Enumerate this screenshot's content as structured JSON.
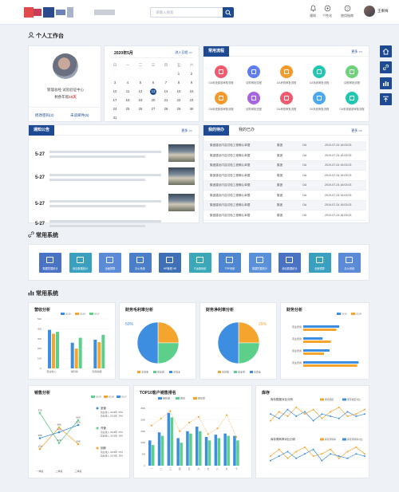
{
  "header": {
    "search_placeholder": "请输入搜索",
    "tools": [
      {
        "label": "通知",
        "icon": "bell-icon"
      },
      {
        "label": "个性化",
        "icon": "palette-icon"
      },
      {
        "label": "使用指南",
        "icon": "help-icon"
      }
    ],
    "user_name": "王東梅"
  },
  "sections": {
    "workbench": "个人工作台",
    "systems": "常用系统",
    "stats": "常用系统"
  },
  "profile": {
    "line1": "管理总经  试验验证中心",
    "line2_prefix": "剩余年假",
    "line2_value": "10天",
    "link1": "修改密码(2)",
    "link2": "未读邮件(5)"
  },
  "calendar": {
    "title": "2020年5月",
    "link": "进入日程 >>",
    "weekdays": [
      "日",
      "一",
      "二",
      "三",
      "四",
      "五",
      "六"
    ],
    "rows": [
      [
        "",
        "",
        "",
        "",
        "",
        "1",
        "2"
      ],
      [
        "3",
        "4",
        "5",
        "6",
        "7",
        "8",
        "9"
      ],
      [
        "10",
        "11",
        "12",
        "13",
        "14",
        "15",
        "16"
      ],
      [
        "17",
        "18",
        "19",
        "20",
        "21",
        "22",
        "23"
      ],
      [
        "24",
        "25",
        "26",
        "27",
        "28",
        "29",
        "30"
      ],
      [
        "31",
        "",
        "",
        "",
        "",
        "",
        ""
      ]
    ],
    "today": "13"
  },
  "flow": {
    "tab": "常用流程",
    "more": "更多 >>",
    "items": [
      {
        "label": "OA系统部部审核流程",
        "color": "#ef5a6e"
      },
      {
        "label": "请购审批流程",
        "color": "#5d7df0"
      },
      {
        "label": "OA考勤审批流程",
        "color": "#f39a2d"
      },
      {
        "label": "OA系统审批流程",
        "color": "#21c7b0"
      },
      {
        "label": "请假审批流程",
        "color": "#6ed27a"
      },
      {
        "label": "OA系统部部审核流程",
        "color": "#f39a2d"
      },
      {
        "label": "请购审批流程",
        "color": "#a765e0"
      },
      {
        "label": "OA考勤审批流程",
        "color": "#ef5a6e"
      },
      {
        "label": "OA系统审批流程",
        "color": "#4aa9f0"
      },
      {
        "label": "OA系统部部审核流程",
        "color": "#21c7b0"
      }
    ]
  },
  "notice": {
    "tab": "通知公告",
    "more": "更多 >>",
    "dates": [
      "5-27",
      "5-27",
      "5-27",
      "5-27"
    ]
  },
  "todo": {
    "tab1": "我的待办",
    "tab2": "我的已办",
    "more": "更多 >>",
    "rows": [
      [
        "集团建设内容试验工程确认单据",
        "集团",
        "OA",
        "2019-07-24 16:03:03"
      ],
      [
        "集团建设内容试验工程确认单据",
        "集团",
        "OA",
        "2019-07-24 16:03:03"
      ],
      [
        "集团建设内容试验工程确认单据",
        "集团",
        "OA",
        "2019-07-24 16:03:03"
      ],
      [
        "集团建设内容试验工程确认单据",
        "集团",
        "OA",
        "2019-07-24 16:03:03"
      ],
      [
        "集团建设内容试验工程确认单据",
        "集团",
        "OA",
        "2019-07-24 16:03:03"
      ],
      [
        "集团建设内容试验工程确认单据",
        "集团",
        "OA",
        "2019-07-24 16:03:03"
      ],
      [
        "集团建设内容试验工程确认单据",
        "集团",
        "OA",
        "2019-07-24 16:03:03"
      ],
      [
        "集团建设内容试验工程确认单据",
        "集团",
        "OA",
        "2019-07-24 16:03:03"
      ]
    ]
  },
  "systems": [
    {
      "label": "数据挖掘统计",
      "color": "#4a72c4"
    },
    {
      "label": "综合数据统计",
      "color": "#3aa0c0"
    },
    {
      "label": "全面预算",
      "color": "#5b8bd6"
    },
    {
      "label": "办公系统",
      "color": "#4a7ec8"
    },
    {
      "label": "HR管理 HR",
      "color": "#3f6fb5"
    },
    {
      "label": "IT运维系统",
      "color": "#3aa8b8"
    },
    {
      "label": "TRP系统",
      "color": "#4f86d0"
    },
    {
      "label": "数据挖掘统计",
      "color": "#5a90d8"
    },
    {
      "label": "综合数据统计",
      "color": "#4a72c4"
    },
    {
      "label": "全面预算",
      "color": "#3aa0c0"
    },
    {
      "label": "办公系统",
      "color": "#5b8bd6"
    }
  ],
  "charts": {
    "gross": {
      "title": "营收分析",
      "chart_data": {
        "type": "bar",
        "categories": [
          "营业收入",
          "净利润",
          "利润总额"
        ],
        "series": [
          {
            "name": "2019",
            "values": [
              390,
              260,
              290
            ],
            "color": "#3d8ee0"
          },
          {
            "name": "2018",
            "values": [
              350,
              200,
              265
            ],
            "color": "#f5a52e"
          },
          {
            "name": "2017",
            "values": [
              370,
              310,
              340
            ],
            "color": "#5ccf8a"
          }
        ],
        "ylim": [
          0,
          500
        ],
        "yticks": [
          0,
          100,
          200,
          300,
          400,
          500
        ]
      }
    },
    "margin": {
      "title": "财务毛利率分析",
      "pct": "50%",
      "chart_data": {
        "type": "pie",
        "labels": [
          "主营收",
          "营业费",
          "主营业"
        ],
        "values": [
          25,
          25,
          50
        ],
        "colors": [
          "#f5a52e",
          "#5ccf8a",
          "#3d8ee0"
        ]
      }
    },
    "net": {
      "title": "财务净利率分析",
      "pct": "25%",
      "chart_data": {
        "type": "pie",
        "labels": [
          "主营收",
          "营业费",
          "主营业"
        ],
        "values": [
          25,
          25,
          50
        ],
        "colors": [
          "#f5a52e",
          "#5ccf8a",
          "#3d8ee0"
        ]
      }
    },
    "finance": {
      "title": "财务分析",
      "chart_data": {
        "type": "bar",
        "orientation": "horizontal",
        "categories": [
          "营业费用",
          "营业费用",
          "营业费用",
          "营业费用"
        ],
        "series": [
          {
            "name": "2019",
            "values": [
              52,
              28,
              38,
              80
            ],
            "color": "#3d8ee0"
          },
          {
            "name": "2018",
            "values": [
              48,
              40,
              30,
              78
            ],
            "color": "#f5a52e"
          }
        ],
        "xlim": [
          0,
          90
        ]
      }
    },
    "sales": {
      "title": "销售分析",
      "chart_data": {
        "type": "line",
        "categories": [
          "一季度",
          "二季度",
          "三季度"
        ],
        "series": [
          {
            "name": "2019",
            "values": [
              720,
              220,
              600
            ],
            "color": "#5ccf8a"
          },
          {
            "name": "2018",
            "values": [
              120,
              480,
              200
            ],
            "color": "#f5a52e"
          },
          {
            "name": "2017",
            "values": [
              300,
              400,
              520
            ],
            "color": "#3d8ee0"
          }
        ]
      },
      "side": [
        {
          "title": "室营",
          "lines": [
            "营业收入 2018年: 55%",
            "营业收入 2019年: 38%"
          ],
          "color": "#3d8ee0"
        },
        {
          "title": "开营",
          "lines": [
            "营业收入 2018年: 55%",
            "营业收入 2019年: 38%"
          ],
          "color": "#5ccf8a"
        },
        {
          "title": "回款",
          "lines": [
            "营业收入 2018年: 55%",
            "营业收入 2019年: 38%"
          ],
          "color": "#f5a52e"
        }
      ]
    },
    "top10": {
      "title": "TOP10客户销售排名",
      "chart_data": {
        "type": "bar",
        "categories": [
          "一",
          "二",
          "三",
          "四",
          "五",
          "六",
          "七",
          "八",
          "九",
          "十"
        ],
        "series": [
          {
            "name": "销售额",
            "values": [
              1100,
              1450,
              2300,
              1200,
              1500,
              1700,
              1250,
              1350,
              1400,
              1300
            ],
            "color": "#3d8ee0"
          },
          {
            "name": "回款",
            "values": [
              900,
              1300,
              2100,
              1000,
              1400,
              1500,
              1100,
              1200,
              1300,
              1100
            ],
            "color": "#5ccf8a"
          },
          {
            "name": "回款率",
            "values": [
              70,
              82,
              95,
              60,
              75,
              85,
              55,
              65,
              88,
              50
            ],
            "color": "#f5a52e"
          }
        ],
        "ylim": [
          0,
          2500
        ]
      }
    },
    "inventory": {
      "title": "库存",
      "sub1": "库存额度对比分析",
      "sub2": "库存周转率对比分析",
      "legend1": [
        "库存额度",
        "库存额度对比"
      ],
      "legend2": [
        "库存周转率",
        "库存周转率对比"
      ],
      "chart_data": [
        {
          "type": "line",
          "series": [
            {
              "name": "库存额度",
              "values": [
                0.3,
                0.7,
                0.5,
                0.9,
                0.6,
                0.8,
                0.4,
                0.7,
                0.9,
                0.5,
                0.6,
                0.8
              ],
              "color": "#f5a52e"
            },
            {
              "name": "库存额度对比",
              "values": [
                0.6,
                0.4,
                0.8,
                0.5,
                0.7,
                0.3,
                0.6,
                0.5,
                0.4,
                0.7,
                0.5,
                0.6
              ],
              "color": "#3d8ee0"
            }
          ]
        },
        {
          "type": "line",
          "series": [
            {
              "name": "库存周转率",
              "values": [
                0.5,
                0.8,
                0.4,
                0.7,
                0.9,
                0.5,
                0.6,
                0.8,
                0.4,
                0.7,
                0.9,
                0.6
              ],
              "color": "#f5a52e"
            },
            {
              "name": "库存周转率对比",
              "values": [
                0.3,
                0.5,
                0.7,
                0.4,
                0.6,
                0.8,
                0.3,
                0.6,
                0.5,
                0.4,
                0.6,
                0.5
              ],
              "color": "#3d8ee0"
            }
          ]
        }
      ]
    }
  }
}
